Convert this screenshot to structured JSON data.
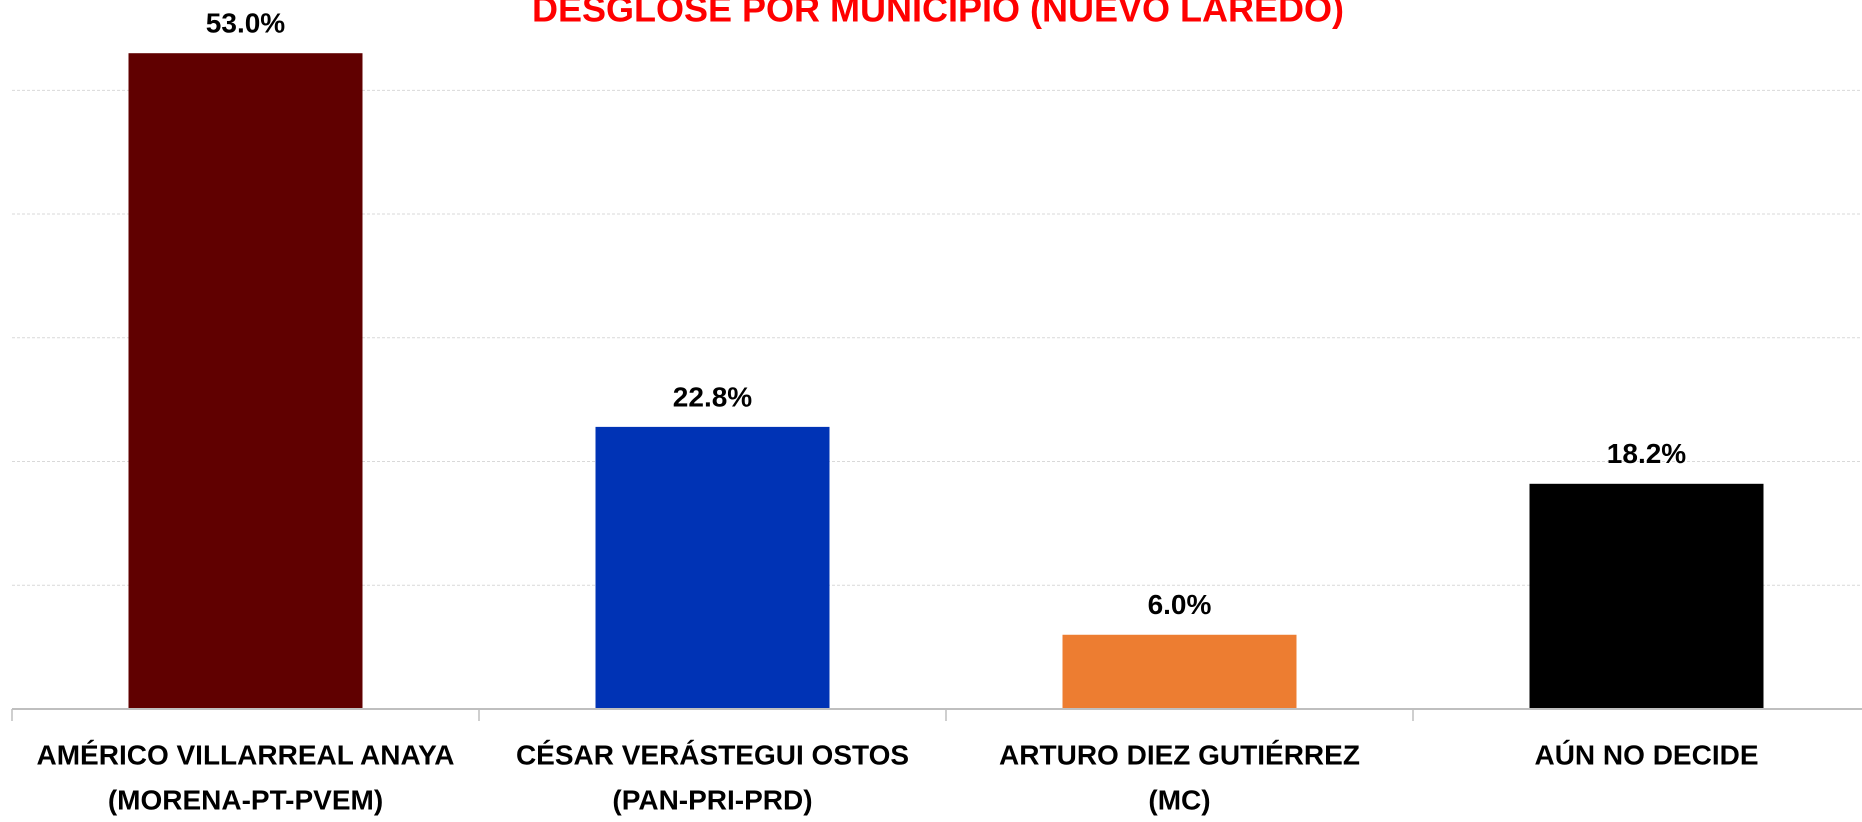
{
  "chart_data": {
    "type": "bar",
    "title": "DESGLOSE POR MUNICIPIO (NUEVO LAREDO)",
    "categories": [
      [
        "AMÉRICO VILLARREAL ANAYA",
        "(MORENA-PT-PVEM)"
      ],
      [
        "CÉSAR VERÁSTEGUI OSTOS",
        "(PAN-PRI-PRD)"
      ],
      [
        "ARTURO DIEZ GUTIÉRREZ",
        "(MC)"
      ],
      [
        "AÚN NO DECIDE"
      ]
    ],
    "values": [
      53.0,
      22.8,
      6.0,
      18.2
    ],
    "value_labels": [
      "53.0%",
      "22.8%",
      "6.0%",
      "18.2%"
    ],
    "colors": [
      "#600000",
      "#0033b5",
      "#ed7d31",
      "#000000"
    ],
    "ylim": [
      0,
      57.3
    ],
    "yticks": [
      0,
      10,
      20,
      30,
      40,
      50
    ],
    "grid": true
  }
}
